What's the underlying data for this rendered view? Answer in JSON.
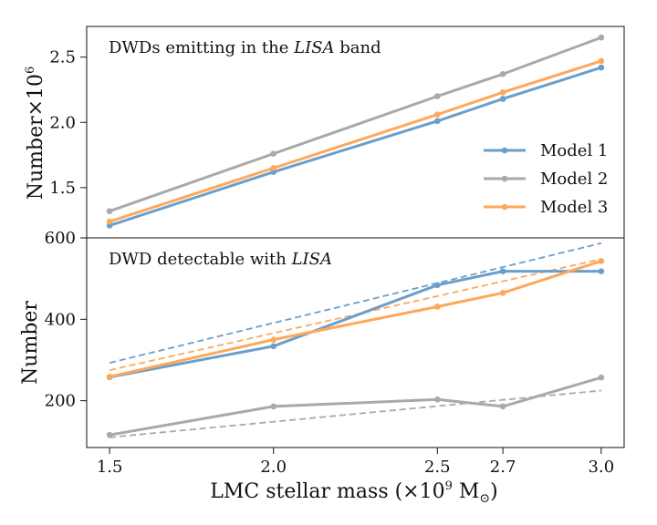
{
  "chart_data": [
    {
      "type": "line",
      "panel": "top",
      "title": "DWDs emitting in the LISA band",
      "title_parts": {
        "before": "DWDs emitting in the ",
        "italic": "LISA",
        "after": " band"
      },
      "ylabel": "Number×10",
      "ylabel_sup": "6",
      "x": [
        1.5,
        2.0,
        2.5,
        2.7,
        3.0
      ],
      "xlim": [
        1.43,
        3.07
      ],
      "ylim": [
        1.115,
        2.735
      ],
      "yticks": [
        1.5,
        2.0,
        2.5
      ],
      "ytick_labels": [
        "1.5",
        "2.0",
        "2.5"
      ],
      "legend": "center-right",
      "series": [
        {
          "name": "Model 1",
          "color": "#6a9fcb",
          "values": [
            1.21,
            1.62,
            2.01,
            2.18,
            2.42
          ]
        },
        {
          "name": "Model 2",
          "color": "#a9a9a9",
          "values": [
            1.32,
            1.76,
            2.2,
            2.37,
            2.65
          ]
        },
        {
          "name": "Model 3",
          "color": "#ffa75a",
          "values": [
            1.24,
            1.65,
            2.06,
            2.23,
            2.47
          ]
        }
      ]
    },
    {
      "type": "line",
      "panel": "bottom",
      "title": "DWD detectable with LISA",
      "title_parts": {
        "before": "DWD detectable with ",
        "italic": "LISA",
        "after": ""
      },
      "ylabel": "Number",
      "x": [
        1.5,
        2.0,
        2.5,
        2.7,
        3.0
      ],
      "xlim": [
        1.43,
        3.07
      ],
      "ylim": [
        85,
        600
      ],
      "yticks": [
        200,
        400,
        600
      ],
      "ytick_labels": [
        "200",
        "400",
        "600"
      ],
      "xlabel": "LMC stellar mass (×10",
      "xlabel_sup": "9",
      "xlabel_tail": " M",
      "xlabel_sub": "⊙",
      "xlabel_close": ")",
      "xticks": [
        1.5,
        2.0,
        2.5,
        2.7,
        3.0
      ],
      "xtick_labels": [
        "1.5",
        "2.0",
        "2.5",
        "2.7",
        "3.0"
      ],
      "series": [
        {
          "name": "Model 1",
          "color": "#6a9fcb",
          "values": [
            258,
            334,
            484,
            518,
            518
          ]
        },
        {
          "name": "Model 2",
          "color": "#a9a9a9",
          "values": [
            116,
            186,
            203,
            186,
            257
          ]
        },
        {
          "name": "Model 3",
          "color": "#ffa75a",
          "values": [
            259,
            350,
            431,
            465,
            543
          ]
        }
      ],
      "fits": [
        {
          "name": "Model 1 fit",
          "color": "#6a9fcb",
          "x": [
            1.5,
            3.0
          ],
          "values": [
            293,
            587
          ]
        },
        {
          "name": "Model 2 fit",
          "color": "#a9a9a9",
          "x": [
            1.5,
            3.0
          ],
          "values": [
            110,
            225
          ]
        },
        {
          "name": "Model 3 fit",
          "color": "#ffa75a",
          "x": [
            1.5,
            3.0
          ],
          "values": [
            275,
            548
          ]
        }
      ]
    }
  ]
}
